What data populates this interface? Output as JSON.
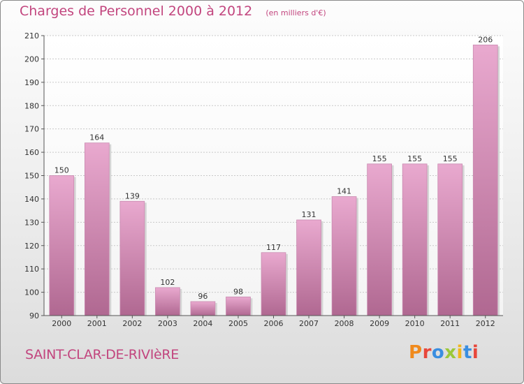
{
  "header": {
    "title": "Charges de Personnel 2000 à 2012",
    "subtitle": "(en milliers d'€)"
  },
  "footer": {
    "place_name": "SAINT-CLAR-DE-RIVIèRE",
    "logo_text": "Proxiti",
    "logo_colors": [
      "#f08a1c",
      "#e8473b",
      "#3a8ee0",
      "#9bc83a",
      "#f2b61d",
      "#3a8ee0",
      "#e8473b"
    ]
  },
  "colors": {
    "accent": "#c2457e",
    "bar_top": "#e9a9cf",
    "bar_bottom": "#b06891",
    "bar_shadow": "#d5d5d5",
    "grid": "#c8c8c8"
  },
  "chart_data": {
    "type": "bar",
    "categories": [
      "2000",
      "2001",
      "2002",
      "2003",
      "2004",
      "2005",
      "2006",
      "2007",
      "2008",
      "2009",
      "2010",
      "2011",
      "2012"
    ],
    "values": [
      150,
      164,
      139,
      102,
      96,
      98,
      117,
      131,
      141,
      155,
      155,
      155,
      206
    ],
    "data_labels": [
      "150",
      "164",
      "139",
      "102",
      "96",
      "98",
      "117",
      "131",
      "141",
      "155",
      "155",
      "155",
      "206"
    ],
    "y_ticks": [
      90,
      100,
      110,
      120,
      130,
      140,
      150,
      160,
      170,
      180,
      190,
      200,
      210
    ],
    "y_tick_labels": [
      "90",
      "100",
      "110",
      "120",
      "130",
      "140",
      "150",
      "160",
      "170",
      "180",
      "190",
      "200",
      "210"
    ],
    "ylim": [
      90,
      210
    ],
    "grid": true,
    "xlabel": "",
    "ylabel": ""
  }
}
